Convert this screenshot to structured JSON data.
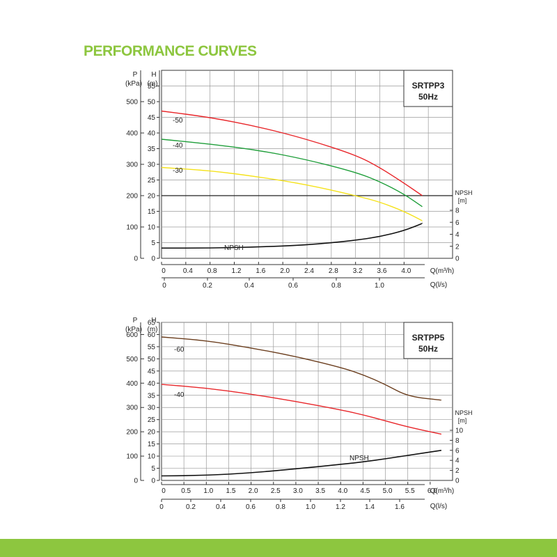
{
  "page": {
    "title": "PERFORMANCE CURVES",
    "accent_color": "#8dc63f"
  },
  "chart_data": [
    {
      "type": "line",
      "title": "SRTPP3",
      "subtitle": "50Hz",
      "p_axis": {
        "label": "P",
        "unit": "(kPa)",
        "ticks": [
          0,
          100,
          200,
          300,
          400,
          500
        ]
      },
      "h_axis": {
        "label": "H",
        "unit": "(m)",
        "ticks": [
          0,
          5,
          10,
          15,
          20,
          25,
          30,
          35,
          40,
          45,
          50,
          55
        ],
        "ylim": [
          0,
          60
        ]
      },
      "npsh_axis": {
        "label": "NPSH",
        "unit": "[m]",
        "ticks": [
          0,
          2,
          4,
          6,
          8
        ]
      },
      "q_m3h_axis": {
        "label": "Q(m³/h)",
        "ticks": [
          "0",
          "0.4",
          "0.8",
          "1.2",
          "1.6",
          "2.0",
          "2.4",
          "2.8",
          "3.2",
          "3.6",
          "4.0"
        ],
        "xlim": [
          0,
          4.8
        ]
      },
      "q_ls_axis": {
        "label": "Q(l/s)",
        "ticks": [
          "0",
          "0.2",
          "0.4",
          "0.6",
          "0.8",
          "1.0"
        ]
      },
      "series": [
        {
          "name": "-50",
          "color": "#e8262a",
          "x": [
            0,
            0.8,
            1.6,
            2.4,
            3.2,
            3.6,
            4.0,
            4.3
          ],
          "y": [
            47,
            45,
            42,
            38,
            33,
            29,
            24,
            20
          ]
        },
        {
          "name": "-40",
          "color": "#1f9e3a",
          "x": [
            0,
            0.8,
            1.6,
            2.4,
            3.2,
            3.6,
            4.0,
            4.3
          ],
          "y": [
            38,
            36.5,
            34.5,
            31.5,
            27.5,
            24.5,
            20.5,
            16.5
          ]
        },
        {
          "name": "-30",
          "color": "#f5e21a",
          "x": [
            0,
            0.8,
            1.6,
            2.4,
            3.2,
            3.6,
            4.0,
            4.3
          ],
          "y": [
            29,
            28,
            26,
            23.5,
            20,
            18,
            15,
            12
          ]
        },
        {
          "name": "NPSH",
          "color": "#111111",
          "axis": "npsh",
          "x": [
            0,
            0.8,
            1.6,
            2.4,
            3.2,
            3.6,
            4.0,
            4.3
          ],
          "y": [
            1.7,
            1.7,
            1.9,
            2.2,
            3.0,
            3.6,
            4.6,
            5.8
          ]
        }
      ]
    },
    {
      "type": "line",
      "title": "SRTPP5",
      "subtitle": "50Hz",
      "p_axis": {
        "label": "P",
        "unit": "(kPa)",
        "ticks": [
          0,
          100,
          200,
          300,
          400,
          500,
          600
        ]
      },
      "h_axis": {
        "label": "H",
        "unit": "(m)",
        "ticks": [
          0,
          5,
          10,
          15,
          20,
          25,
          30,
          35,
          40,
          45,
          50,
          55,
          60,
          65
        ],
        "ylim": [
          0,
          65
        ]
      },
      "npsh_axis": {
        "label": "NPSH",
        "unit": "[m]",
        "ticks": [
          0,
          2,
          4,
          6,
          8,
          10
        ]
      },
      "q_m3h_axis": {
        "label": "Q(m³/h)",
        "ticks": [
          "0",
          "0.5",
          "1.0",
          "1.5",
          "2.0",
          "2.5",
          "3.0",
          "3.5",
          "4.0",
          "4.5",
          "5.0",
          "5.5",
          "6.0"
        ],
        "xlim": [
          0,
          6.5
        ]
      },
      "q_ls_axis": {
        "label": "Q(l/s)",
        "ticks": [
          "0",
          "0.2",
          "0.4",
          "0.6",
          "0.8",
          "1.0",
          "1.2",
          "1.4",
          "1.6"
        ]
      },
      "series": [
        {
          "name": "-60",
          "color": "#6b3e1e",
          "x": [
            0,
            1,
            2,
            3,
            4,
            4.5,
            5,
            5.5,
            6.25
          ],
          "y": [
            59,
            57.5,
            54.5,
            51,
            46.5,
            43.5,
            39.5,
            34.5,
            33
          ]
        },
        {
          "name": "-40",
          "color": "#e8262a",
          "x": [
            0,
            1,
            2,
            3,
            4,
            4.5,
            5,
            5.5,
            6.25
          ],
          "y": [
            39.5,
            38,
            35.5,
            32.5,
            29,
            27,
            24.5,
            22,
            19
          ]
        },
        {
          "name": "NPSH",
          "color": "#111111",
          "axis": "npsh",
          "x": [
            0,
            1,
            2,
            3,
            4,
            4.5,
            5,
            5.5,
            6.25
          ],
          "y": [
            0.9,
            1.0,
            1.5,
            2.3,
            3.2,
            3.7,
            4.3,
            5.0,
            6.0
          ]
        }
      ]
    }
  ]
}
